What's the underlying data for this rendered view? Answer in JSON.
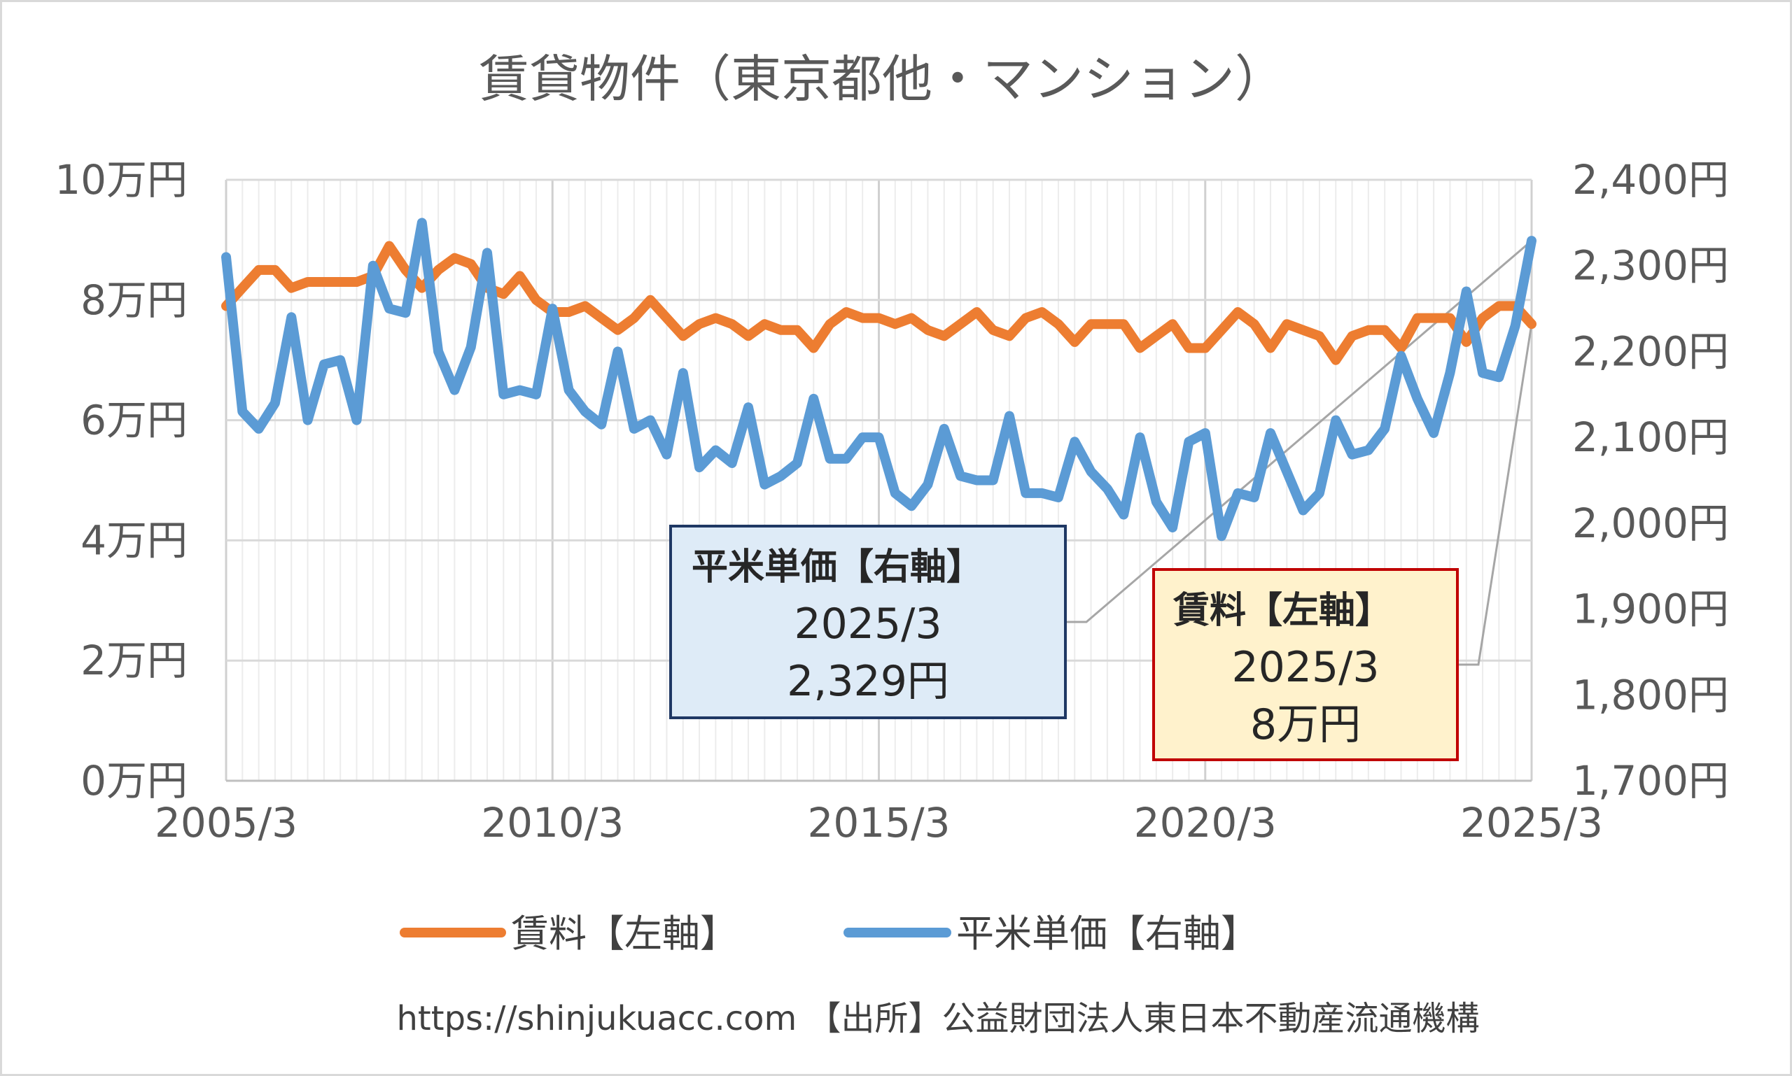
{
  "chart_data": {
    "type": "line",
    "title": "賃貸物件（東京都他・マンション）",
    "x_tick_labels": [
      "2005/3",
      "2010/3",
      "2015/3",
      "2020/3",
      "2025/3"
    ],
    "y_left": {
      "ylim": [
        0,
        10
      ],
      "ticks": [
        0,
        2,
        4,
        6,
        8,
        10
      ],
      "tick_labels": [
        "0万円",
        "2万円",
        "4万円",
        "6万円",
        "8万円",
        "10万円"
      ]
    },
    "y_right": {
      "ylim": [
        1700,
        2400
      ],
      "ticks": [
        1700,
        1800,
        1900,
        2000,
        2100,
        2200,
        2300,
        2400
      ],
      "tick_labels": [
        "1,700円",
        "1,800円",
        "1,900円",
        "2,000円",
        "2,100円",
        "2,200円",
        "2,300円",
        "2,400円"
      ]
    },
    "grid": true,
    "legend_placement": "bottom",
    "series": [
      {
        "name": "賃料【左軸】",
        "axis": "left",
        "color": "#ED7D31",
        "x_start": 2005.25,
        "step": 0.25,
        "values": [
          7.9,
          8.2,
          8.5,
          8.5,
          8.2,
          8.3,
          8.3,
          8.3,
          8.3,
          8.4,
          8.9,
          8.5,
          8.2,
          8.5,
          8.7,
          8.6,
          8.2,
          8.1,
          8.4,
          8.0,
          7.8,
          7.8,
          7.9,
          7.7,
          7.5,
          7.7,
          8.0,
          7.7,
          7.4,
          7.6,
          7.7,
          7.6,
          7.4,
          7.6,
          7.5,
          7.5,
          7.2,
          7.6,
          7.8,
          7.7,
          7.7,
          7.6,
          7.7,
          7.5,
          7.4,
          7.6,
          7.8,
          7.5,
          7.4,
          7.7,
          7.8,
          7.6,
          7.3,
          7.6,
          7.6,
          7.6,
          7.2,
          7.4,
          7.6,
          7.2,
          7.2,
          7.5,
          7.8,
          7.6,
          7.2,
          7.6,
          7.5,
          7.4,
          7.0,
          7.4,
          7.5,
          7.5,
          7.2,
          7.7,
          7.7,
          7.7,
          7.3,
          7.7,
          7.9,
          7.9,
          7.6
        ]
      },
      {
        "name": "平米単価【右軸】",
        "axis": "right",
        "color": "#5B9BD5",
        "x_start": 2005.25,
        "step": 0.25,
        "values": [
          2310,
          2130,
          2110,
          2140,
          2240,
          2120,
          2185,
          2190,
          2120,
          2300,
          2250,
          2245,
          2350,
          2200,
          2155,
          2205,
          2315,
          2150,
          2155,
          2150,
          2250,
          2155,
          2130,
          2115,
          2200,
          2110,
          2120,
          2080,
          2175,
          2065,
          2085,
          2070,
          2135,
          2045,
          2055,
          2070,
          2145,
          2075,
          2075,
          2100,
          2100,
          2035,
          2020,
          2045,
          2110,
          2055,
          2050,
          2050,
          2125,
          2035,
          2035,
          2030,
          2095,
          2060,
          2040,
          2010,
          2100,
          2025,
          1995,
          2095,
          2105,
          1985,
          2035,
          2030,
          2105,
          2060,
          2015,
          2035,
          2120,
          2080,
          2085,
          2110,
          2195,
          2145,
          2105,
          2175,
          2270,
          2175,
          2170,
          2230,
          2329
        ]
      }
    ],
    "callouts": [
      {
        "series": "平米単価【右軸】",
        "header": "平米単価【右軸】",
        "date": "2025/3",
        "value": "2,329円"
      },
      {
        "series": "賃料【左軸】",
        "header": "賃料【左軸】",
        "date": "2025/3",
        "value": "8万円"
      }
    ]
  },
  "footer": "https://shinjukuacc.com 【出所】公益財団法人東日本不動産流通機構"
}
